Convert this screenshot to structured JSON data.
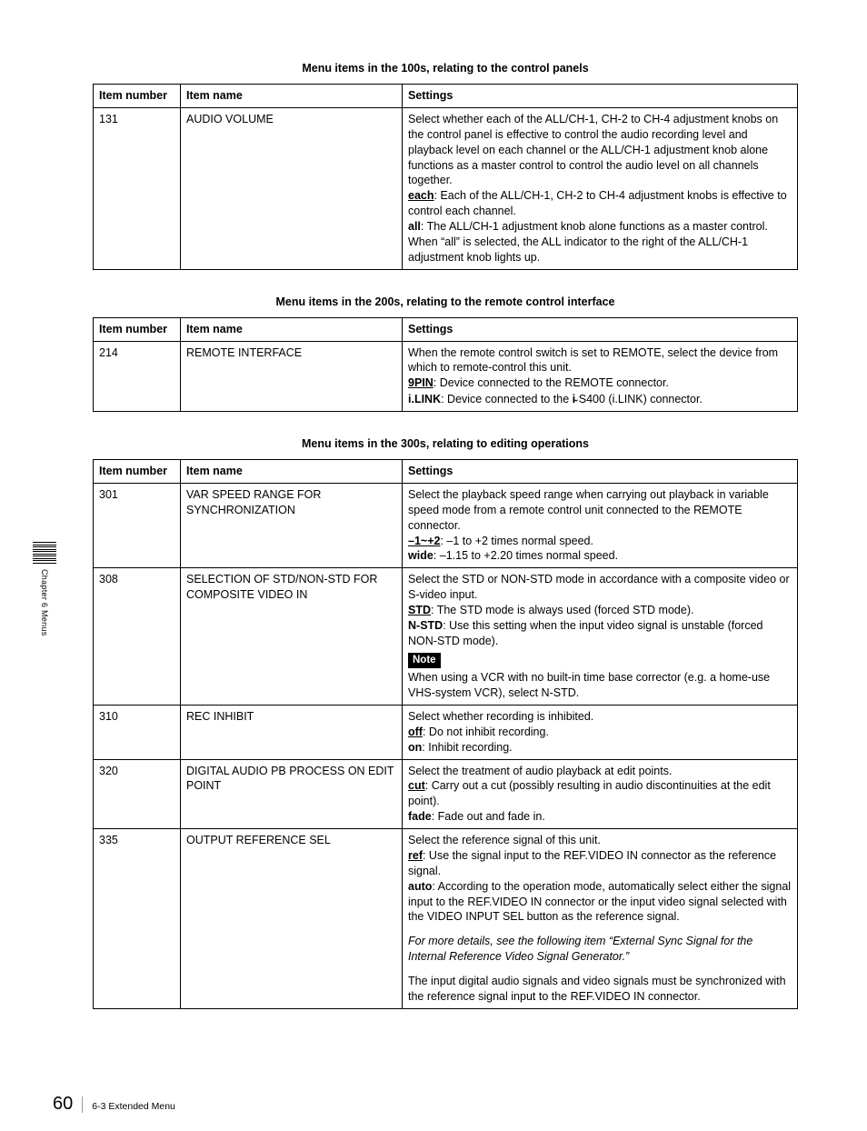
{
  "side_label": "Chapter 6  Menus",
  "footer": {
    "page": "60",
    "section": "6-3 Extended Menu"
  },
  "sections": [
    {
      "title": "Menu items in the 100s, relating to the control panels",
      "headers": [
        "Item number",
        "Item name",
        "Settings"
      ],
      "rows": [
        {
          "num": "131",
          "name": "AUDIO VOLUME"
        }
      ],
      "r131": {
        "p1": "Select whether each of the ALL/CH-1, CH-2 to CH-4 adjustment knobs on the control panel is effective to control the audio recording level and playback level on each channel or the ALL/CH-1 adjustment knob alone functions as a master control to control the audio level on all channels together.",
        "each_lbl": "each",
        "each_txt": ": Each of the ALL/CH-1, CH-2 to CH-4 adjustment knobs is effective to control each channel.",
        "all_lbl": "all",
        "all_txt": ": The ALL/CH-1 adjustment knob alone functions as a master control. When “all” is selected, the ALL indicator to the right of the ALL/CH-1 adjustment knob lights up."
      }
    },
    {
      "title": "Menu items in the 200s, relating to the remote control interface",
      "headers": [
        "Item number",
        "Item name",
        "Settings"
      ],
      "rows": [
        {
          "num": "214",
          "name": "REMOTE INTERFACE"
        }
      ],
      "r214": {
        "p1": "When the remote control switch is set to REMOTE, select the device from which to remote-control this unit.",
        "pin_lbl": "9PIN",
        "pin_txt": ": Device connected to the REMOTE connector.",
        "ilink_lbl": "i.LINK",
        "ilink_txt_a": ": Device connected to the ",
        "ilink_sym": "i̴",
        "ilink_txt_b": "S400 (i.LINK) connector."
      }
    },
    {
      "title": "Menu items in the 300s, relating to editing operations",
      "headers": [
        "Item number",
        "Item name",
        "Settings"
      ],
      "rows": [
        {
          "num": "301",
          "name": "VAR SPEED RANGE FOR SYNCHRONIZATION"
        },
        {
          "num": "308",
          "name": "SELECTION OF STD/NON-STD FOR COMPOSITE VIDEO IN"
        },
        {
          "num": "310",
          "name": "REC INHIBIT"
        },
        {
          "num": "320",
          "name": "DIGITAL AUDIO PB PROCESS ON EDIT POINT"
        },
        {
          "num": "335",
          "name": "OUTPUT REFERENCE SEL"
        }
      ],
      "r301": {
        "p1": "Select the playback speed range when carrying out playback in variable speed mode from a remote control unit connected to the REMOTE connector.",
        "o1_lbl": "–1~+2",
        "o1_txt": ": –1 to +2 times normal speed.",
        "o2_lbl": "wide",
        "o2_txt": ": –1.15 to +2.20 times normal speed."
      },
      "r308": {
        "p1": "Select the STD or NON-STD mode in accordance with a composite video or S-video input.",
        "o1_lbl": "STD",
        "o1_txt": ": The STD mode is always used (forced STD mode).",
        "o2_lbl": "N-STD",
        "o2_txt": ": Use this setting when the input video signal is unstable (forced NON-STD mode).",
        "note_lbl": "Note",
        "note_txt": "When using a VCR with no built-in time base corrector (e.g. a home-use VHS-system VCR), select N-STD."
      },
      "r310": {
        "p1": "Select whether recording is inhibited.",
        "o1_lbl": "off",
        "o1_txt": ": Do not inhibit recording.",
        "o2_lbl": "on",
        "o2_txt": ": Inhibit recording."
      },
      "r320": {
        "p1": "Select the treatment of audio playback at edit points.",
        "o1_lbl": "cut",
        "o1_txt": ": Carry out a cut (possibly resulting in audio discontinuities at the edit point).",
        "o2_lbl": "fade",
        "o2_txt": ": Fade out and fade in."
      },
      "r335": {
        "p1": "Select the reference signal of this unit.",
        "o1_lbl": "ref",
        "o1_txt": ": Use the signal input to the REF.VIDEO IN connector as the reference signal.",
        "o2_lbl": "auto",
        "o2_txt": ": According to the operation mode, automatically select either the signal input to the REF.VIDEO IN connector or the input video signal selected with the VIDEO INPUT SEL button as the reference signal.",
        "ital": "For more details, see the following item “External Sync Signal for the Internal Reference Video Signal Generator.”",
        "p2": "The input digital audio signals and video signals must be synchronized with the reference signal input to the REF.VIDEO IN connector."
      }
    }
  ]
}
